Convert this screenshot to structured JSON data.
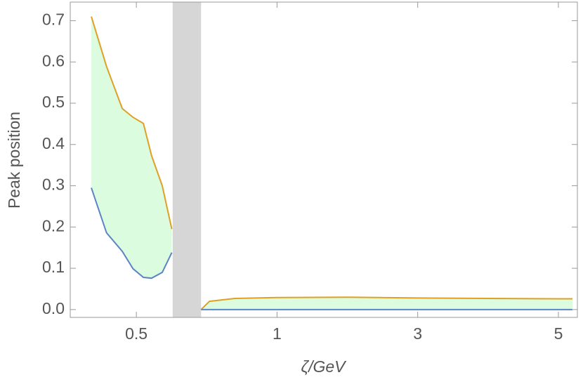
{
  "chart_data": {
    "type": "line",
    "xlabel": "ζ/GeV",
    "ylabel": "Peak position",
    "x": [
      0.34,
      0.394,
      0.45,
      0.488,
      0.525,
      0.554,
      0.592,
      0.626,
      0.68,
      0.73,
      0.76,
      0.85,
      1,
      2,
      3,
      4,
      5,
      5.2
    ],
    "series": [
      {
        "color": "#dfa024",
        "values": [
          0.71,
          0.589,
          0.487,
          0.466,
          0.451,
          0.373,
          0.3,
          0.195,
          null,
          0.0,
          0.02,
          0.027,
          0.029,
          0.03,
          0.028,
          0.027,
          0.026,
          0.026
        ]
      },
      {
        "color": "#5b84c4",
        "values": [
          0.295,
          0.186,
          0.141,
          0.099,
          0.078,
          0.076,
          0.09,
          0.138,
          null,
          0.0,
          0.0,
          0.0,
          0.0,
          0.0,
          0.0,
          0.0,
          0.0,
          0.0
        ]
      }
    ],
    "fill_between": [
      0,
      1
    ],
    "fill_color": "#dcfce0",
    "shade": [
      0.629,
      0.73
    ],
    "shade_color": "#d6d6d6",
    "xlim": [
      0.265,
      5.27
    ],
    "xticks": [
      0.5,
      1,
      3,
      5
    ],
    "ylim": [
      -0.019,
      0.745
    ],
    "yticks": [
      {
        "value": 0,
        "label": "0.0"
      },
      0.1,
      0.2,
      0.3,
      0.4,
      0.5,
      0.6,
      0.7
    ],
    "grid": false
  }
}
